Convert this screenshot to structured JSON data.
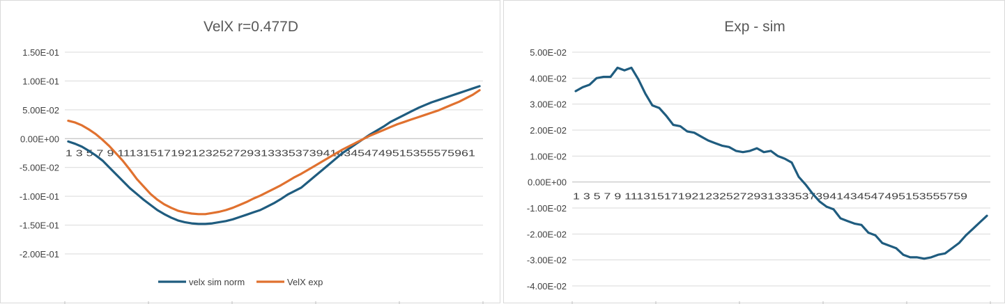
{
  "chart_data": [
    {
      "type": "line",
      "title": "VelX r=0.477D",
      "categories": [
        1,
        2,
        3,
        4,
        5,
        6,
        7,
        8,
        9,
        10,
        11,
        12,
        13,
        14,
        15,
        16,
        17,
        18,
        19,
        20,
        21,
        22,
        23,
        24,
        25,
        26,
        27,
        28,
        29,
        30,
        31,
        32,
        33,
        34,
        35,
        36,
        37,
        38,
        39,
        40,
        41,
        42,
        43,
        44,
        45,
        46,
        47,
        48,
        49,
        50,
        51,
        52,
        53,
        54,
        55,
        56,
        57,
        58,
        59,
        60,
        61
      ],
      "ylim": [
        -0.2,
        0.15
      ],
      "yticks": [
        "1.50E-01",
        "1.00E-01",
        "5.00E-02",
        "0.00E+00",
        "-5.00E-02",
        "-1.00E-01",
        "-1.50E-01",
        "-2.00E-01"
      ],
      "ytick_values": [
        0.15,
        0.1,
        0.05,
        0,
        -0.05,
        -0.1,
        -0.15,
        -0.2
      ],
      "category_labels": "1 3 5 7 9 1113151719212325272931333537394143454749515355575961",
      "legend_position": "bottom",
      "grid": true,
      "series": [
        {
          "name": "velx sim norm",
          "color": "#1f5c7f",
          "values": [
            -0.005,
            -0.009,
            -0.014,
            -0.021,
            -0.029,
            -0.038,
            -0.05,
            -0.062,
            -0.074,
            -0.086,
            -0.096,
            -0.106,
            -0.115,
            -0.124,
            -0.131,
            -0.137,
            -0.142,
            -0.145,
            -0.147,
            -0.148,
            -0.148,
            -0.147,
            -0.145,
            -0.143,
            -0.14,
            -0.136,
            -0.132,
            -0.128,
            -0.124,
            -0.118,
            -0.112,
            -0.105,
            -0.097,
            -0.091,
            -0.085,
            -0.075,
            -0.065,
            -0.055,
            -0.045,
            -0.035,
            -0.025,
            -0.017,
            -0.009,
            -0.001,
            0.007,
            0.014,
            0.021,
            0.029,
            0.035,
            0.041,
            0.047,
            0.053,
            0.058,
            0.063,
            0.067,
            0.071,
            0.075,
            0.079,
            0.083,
            0.087,
            0.091
          ]
        },
        {
          "name": "VelX exp",
          "color": "#e0712f",
          "values": [
            0.031,
            0.028,
            0.023,
            0.016,
            0.008,
            -0.002,
            -0.013,
            -0.026,
            -0.039,
            -0.054,
            -0.07,
            -0.083,
            -0.096,
            -0.106,
            -0.114,
            -0.12,
            -0.125,
            -0.128,
            -0.13,
            -0.131,
            -0.131,
            -0.129,
            -0.127,
            -0.124,
            -0.12,
            -0.115,
            -0.11,
            -0.104,
            -0.099,
            -0.093,
            -0.087,
            -0.081,
            -0.074,
            -0.067,
            -0.061,
            -0.054,
            -0.047,
            -0.04,
            -0.033,
            -0.026,
            -0.019,
            -0.013,
            -0.007,
            -0.001,
            0.005,
            0.01,
            0.015,
            0.02,
            0.025,
            0.029,
            0.033,
            0.037,
            0.041,
            0.045,
            0.049,
            0.054,
            0.059,
            0.064,
            0.07,
            0.076,
            0.084
          ]
        }
      ]
    },
    {
      "type": "line",
      "title": "Exp - sim",
      "categories": [
        1,
        2,
        3,
        4,
        5,
        6,
        7,
        8,
        9,
        10,
        11,
        12,
        13,
        14,
        15,
        16,
        17,
        18,
        19,
        20,
        21,
        22,
        23,
        24,
        25,
        26,
        27,
        28,
        29,
        30,
        31,
        32,
        33,
        34,
        35,
        36,
        37,
        38,
        39,
        40,
        41,
        42,
        43,
        44,
        45,
        46,
        47,
        48,
        49,
        50,
        51,
        52,
        53,
        54,
        55,
        56,
        57,
        58,
        59,
        60
      ],
      "ylim": [
        -0.04,
        0.05
      ],
      "yticks": [
        "5.00E-02",
        "4.00E-02",
        "3.00E-02",
        "2.00E-02",
        "1.00E-02",
        "0.00E+00",
        "-1.00E-02",
        "-2.00E-02",
        "-3.00E-02",
        "-4.00E-02"
      ],
      "ytick_values": [
        0.05,
        0.04,
        0.03,
        0.02,
        0.01,
        0,
        -0.01,
        -0.02,
        -0.03,
        -0.04
      ],
      "category_labels": "1 3 5 7 9 11131517192123252729313335373941434547495153555759",
      "grid": true,
      "series": [
        {
          "color": "#1f5c7f",
          "values": [
            0.035,
            0.0365,
            0.0375,
            0.04,
            0.0405,
            0.0405,
            0.044,
            0.043,
            0.044,
            0.0395,
            0.034,
            0.0295,
            0.0285,
            0.0255,
            0.022,
            0.0215,
            0.0195,
            0.019,
            0.0175,
            0.016,
            0.015,
            0.014,
            0.0135,
            0.012,
            0.0115,
            0.012,
            0.013,
            0.0115,
            0.012,
            0.01,
            0.009,
            0.0075,
            0.002,
            -0.001,
            -0.0045,
            -0.0075,
            -0.0095,
            -0.0105,
            -0.014,
            -0.015,
            -0.016,
            -0.0165,
            -0.0195,
            -0.0205,
            -0.0235,
            -0.0245,
            -0.0255,
            -0.028,
            -0.029,
            -0.029,
            -0.0295,
            -0.029,
            -0.028,
            -0.0275,
            -0.0255,
            -0.0235,
            -0.0205,
            -0.018,
            -0.0155,
            -0.013
          ]
        }
      ]
    }
  ]
}
